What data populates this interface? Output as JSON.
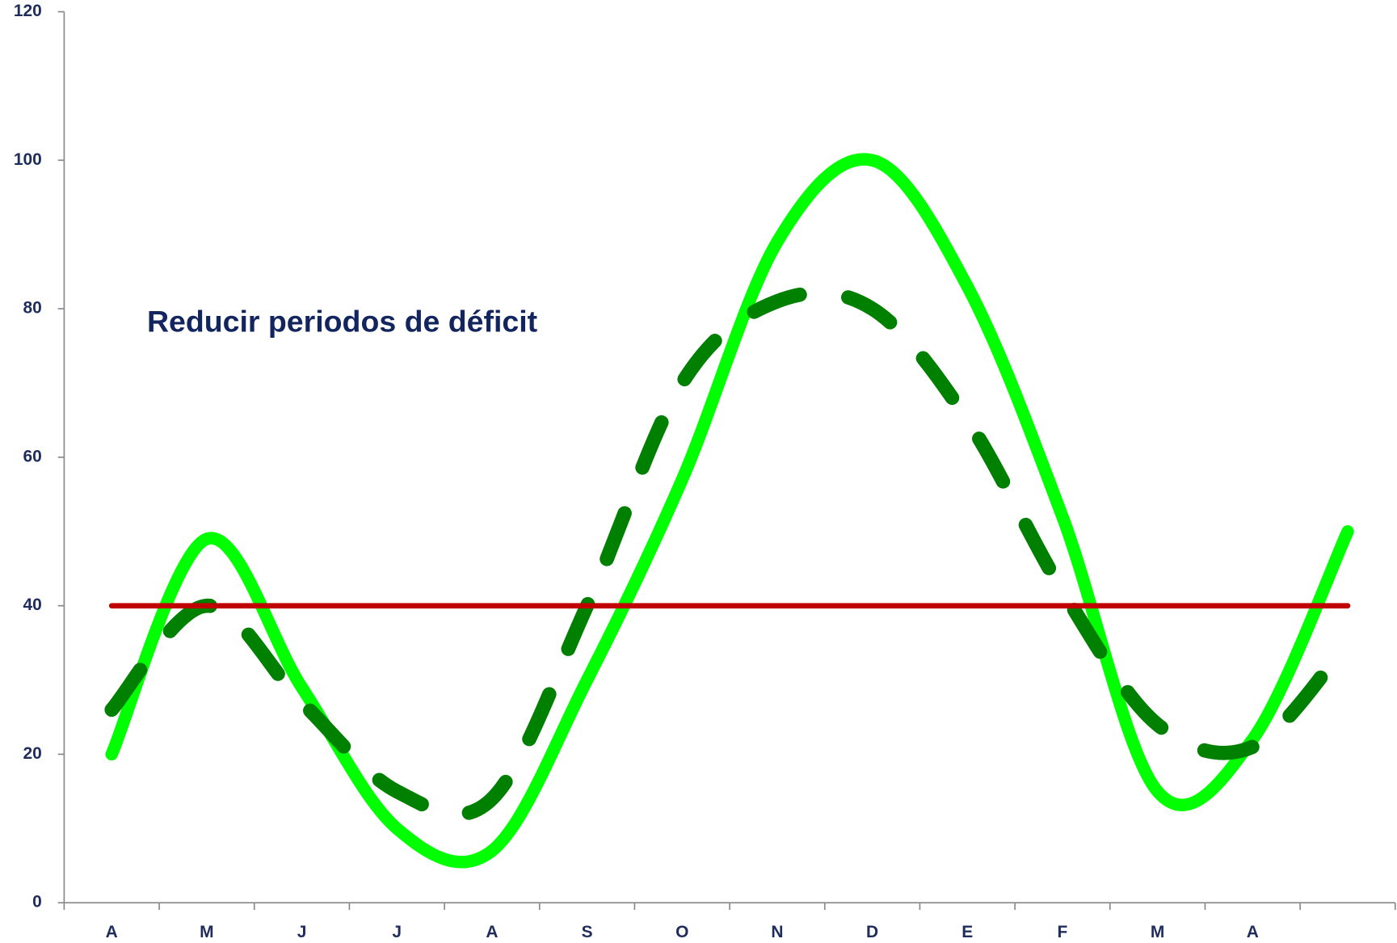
{
  "chart_data": {
    "type": "line",
    "annotation": "Reducir periodos de déficit",
    "categories": [
      "A",
      "M",
      "J",
      "J",
      "A",
      "S",
      "O",
      "N",
      "D",
      "E",
      "F",
      "M",
      "A",
      null
    ],
    "series": [
      {
        "color": "#00ff00",
        "style": "solid",
        "values": [
          20,
          49,
          29,
          10,
          7,
          30,
          57,
          89,
          100,
          83,
          52,
          15,
          22,
          50
        ]
      },
      {
        "color": "#008000",
        "style": "dashed",
        "values": [
          26,
          40,
          27,
          15,
          14,
          40,
          70,
          81,
          80,
          65,
          42,
          24,
          21,
          35
        ]
      },
      {
        "color": "#c00000",
        "style": "solid",
        "values": [
          40,
          40,
          40,
          40,
          40,
          40,
          40,
          40,
          40,
          40,
          40,
          40,
          40,
          40
        ]
      }
    ],
    "ylim": [
      0,
      120
    ],
    "yticks": [
      0,
      20,
      40,
      60,
      80,
      100,
      120
    ],
    "smooth": true
  }
}
